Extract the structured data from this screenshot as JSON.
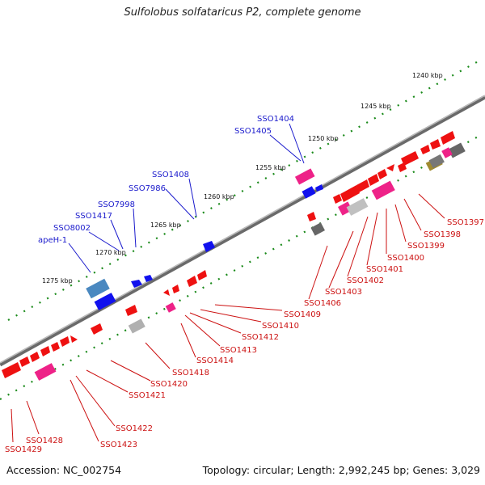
{
  "title": "Sulfolobus solfataricus P2, complete genome",
  "footer": {
    "accession": "Accession: NC_002754",
    "summary": "Topology: circular; Length: 2,992,245 bp; Genes: 3,029"
  },
  "ticks": [
    "1240 kbp",
    "1245 kbp",
    "1250 kbp",
    "1255 kbp",
    "1260 kbp",
    "1265 kbp",
    "1270 kbp",
    "1275 kbp"
  ],
  "labels_top": [
    "SSO1404",
    "SSO1405",
    "SSO1408",
    "SSO7986",
    "SSO7998",
    "SSO1417",
    "SSO8002",
    "apeH-1"
  ],
  "labels_bottom": [
    "SSO1397",
    "SSO1398",
    "SSO1399",
    "SSO1400",
    "SSO1401",
    "SSO1402",
    "SSO1403",
    "SSO1406",
    "SSO1409",
    "SSO1410",
    "SSO1412",
    "SSO1413",
    "SSO1414",
    "SSO1418",
    "SSO1420",
    "SSO1421",
    "SSO1422",
    "SSO1423",
    "SSO1428",
    "SSO1429"
  ],
  "colors": {
    "backbone": "#808080",
    "tick_green": "#1a8a1a",
    "gene_red": "#ee1111",
    "gene_blue": "#1111ee",
    "gene_pink": "#ee2288",
    "gene_gray": "#b0b0b0",
    "gene_darkgray": "#666666",
    "gene_steelblue": "#4a88c0",
    "label_blue": "#1a1acc",
    "label_red": "#cc1111"
  }
}
